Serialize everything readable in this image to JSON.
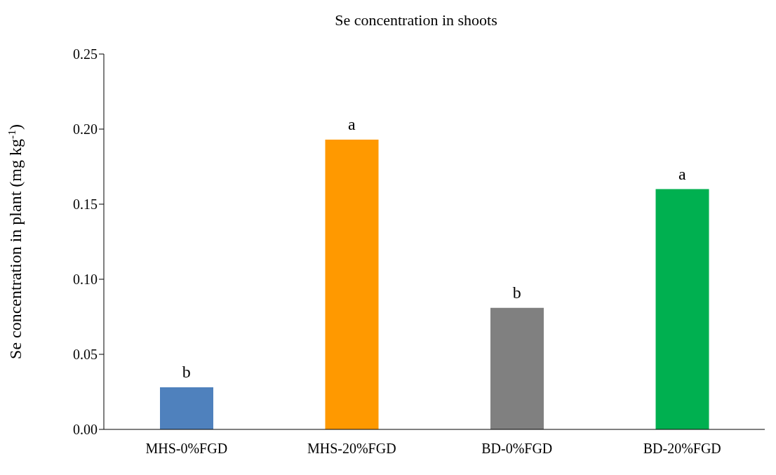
{
  "chart_data": {
    "type": "bar",
    "title": "Se concentration in shoots",
    "ylabel": "Se concentration in plant (mg kg$^{-1}$)",
    "categories": [
      "MHS-0%FGD",
      "MHS-20%FGD",
      "BD-0%FGD",
      "BD-20%FGD"
    ],
    "values": [
      0.028,
      0.193,
      0.081,
      0.16
    ],
    "colors": [
      "#4f81bd",
      "#ff9900",
      "#808080",
      "#00b050"
    ],
    "ylim": [
      0,
      0.25
    ],
    "yticks": [
      {
        "value": 0,
        "label": "0.00"
      },
      {
        "value": 0.05,
        "label": "0.05"
      },
      {
        "value": 0.1,
        "label": "0.10"
      },
      {
        "value": 0.15,
        "label": "0.15"
      },
      {
        "value": 0.2,
        "label": "0.20"
      },
      {
        "value": 0.25,
        "label": "0.25"
      }
    ],
    "annotations": [
      {
        "text": "b",
        "x": "MHS-0%FGD",
        "y": 0.028
      },
      {
        "text": "a",
        "x": "MHS-20%FGD",
        "y": 0.193
      },
      {
        "text": "b",
        "x": "BD-0%FGD",
        "y": 0.081
      },
      {
        "text": "a",
        "x": "BD-20%FGD",
        "y": 0.16
      }
    ],
    "grid": false,
    "legend": false
  }
}
